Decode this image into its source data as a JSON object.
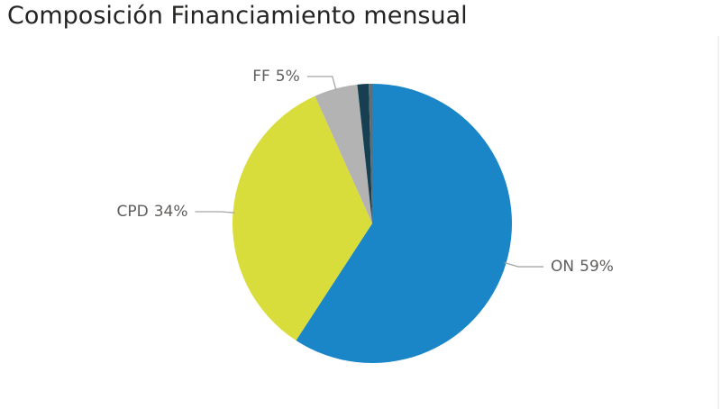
{
  "chart_data": {
    "type": "pie",
    "title": "Composición Financiamiento mensual",
    "categories": [
      "ON",
      "CPD",
      "FF",
      null,
      null
    ],
    "values": [
      59,
      34,
      5,
      1.3,
      0.4
    ],
    "value_labels": [
      "59%",
      "34%",
      "5%",
      null,
      null
    ],
    "colors": [
      "#1a86c7",
      "#d8dd3b",
      "#b3b3b3",
      "#173f52",
      "#5d6f78"
    ]
  }
}
